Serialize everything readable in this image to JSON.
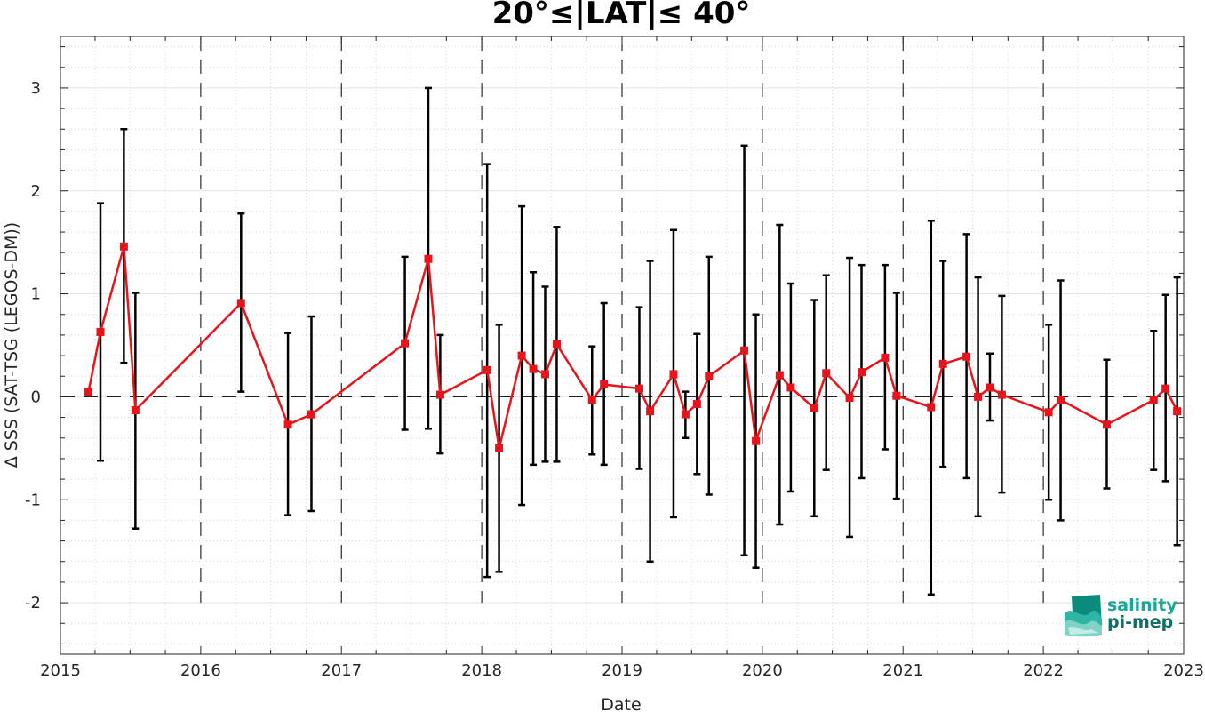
{
  "chart_data": {
    "type": "line",
    "title": "20°≤|LAT|≤ 40°",
    "xlabel": "Date",
    "ylabel": "Δ SSS (SAT-TSG (LEGOS-DM))",
    "xlim": [
      "2015-01-01",
      "2023-01-01"
    ],
    "ylim": [
      -2.5,
      3.5
    ],
    "x_tick_labels": [
      "2015",
      "2016",
      "2017",
      "2018",
      "2019",
      "2020",
      "2021",
      "2022",
      "2023"
    ],
    "y_tick_labels": [
      "-2",
      "-1",
      "0",
      "1",
      "2",
      "3"
    ],
    "y_ticks": [
      -2,
      -1,
      0,
      1,
      2,
      3
    ],
    "grid": true,
    "minor_grid": true,
    "year_dashed_lines": true,
    "zero_dashed_line": true,
    "series": [
      {
        "color": "#e8141b",
        "marker": "square",
        "errorbar_color": "#000000",
        "points": [
          {
            "x": "2015-03-15",
            "y": 0.05,
            "low": 0.03,
            "high": 0.07
          },
          {
            "x": "2015-04-15",
            "y": 0.63,
            "low": -0.62,
            "high": 1.88
          },
          {
            "x": "2015-06-15",
            "y": 1.46,
            "low": 0.33,
            "high": 2.6
          },
          {
            "x": "2015-07-15",
            "y": -0.13,
            "low": -1.28,
            "high": 1.01
          },
          {
            "x": "2016-04-15",
            "y": 0.91,
            "low": 0.05,
            "high": 1.78
          },
          {
            "x": "2016-08-15",
            "y": -0.27,
            "low": -1.15,
            "high": 0.62
          },
          {
            "x": "2016-10-15",
            "y": -0.17,
            "low": -1.11,
            "high": 0.78
          },
          {
            "x": "2017-06-15",
            "y": 0.52,
            "low": -0.32,
            "high": 1.36
          },
          {
            "x": "2017-08-15",
            "y": 1.34,
            "low": -0.31,
            "high": 3.0
          },
          {
            "x": "2017-09-15",
            "y": 0.02,
            "low": -0.55,
            "high": 0.6
          },
          {
            "x": "2018-01-15",
            "y": 0.26,
            "low": -1.75,
            "high": 2.26
          },
          {
            "x": "2018-02-15",
            "y": -0.5,
            "low": -1.7,
            "high": 0.7
          },
          {
            "x": "2018-04-15",
            "y": 0.4,
            "low": -1.05,
            "high": 1.85
          },
          {
            "x": "2018-05-15",
            "y": 0.27,
            "low": -0.66,
            "high": 1.21
          },
          {
            "x": "2018-06-15",
            "y": 0.22,
            "low": -0.63,
            "high": 1.07
          },
          {
            "x": "2018-07-15",
            "y": 0.51,
            "low": -0.63,
            "high": 1.65
          },
          {
            "x": "2018-10-15",
            "y": -0.03,
            "low": -0.56,
            "high": 0.49
          },
          {
            "x": "2018-11-15",
            "y": 0.12,
            "low": -0.66,
            "high": 0.91
          },
          {
            "x": "2019-02-15",
            "y": 0.08,
            "low": -0.7,
            "high": 0.87
          },
          {
            "x": "2019-03-15",
            "y": -0.14,
            "low": -1.6,
            "high": 1.32
          },
          {
            "x": "2019-05-15",
            "y": 0.22,
            "low": -1.17,
            "high": 1.62
          },
          {
            "x": "2019-06-15",
            "y": -0.17,
            "low": -0.4,
            "high": 0.05
          },
          {
            "x": "2019-07-15",
            "y": -0.07,
            "low": -0.75,
            "high": 0.61
          },
          {
            "x": "2019-08-15",
            "y": 0.2,
            "low": -0.95,
            "high": 1.36
          },
          {
            "x": "2019-11-15",
            "y": 0.45,
            "low": -1.54,
            "high": 2.44
          },
          {
            "x": "2019-12-15",
            "y": -0.43,
            "low": -1.66,
            "high": 0.8
          },
          {
            "x": "2020-02-15",
            "y": 0.21,
            "low": -1.24,
            "high": 1.67
          },
          {
            "x": "2020-03-15",
            "y": 0.09,
            "low": -0.92,
            "high": 1.1
          },
          {
            "x": "2020-05-15",
            "y": -0.11,
            "low": -1.16,
            "high": 0.94
          },
          {
            "x": "2020-06-15",
            "y": 0.23,
            "low": -0.71,
            "high": 1.18
          },
          {
            "x": "2020-08-15",
            "y": -0.01,
            "low": -1.36,
            "high": 1.35
          },
          {
            "x": "2020-09-15",
            "y": 0.24,
            "low": -0.79,
            "high": 1.28
          },
          {
            "x": "2020-11-15",
            "y": 0.38,
            "low": -0.51,
            "high": 1.28
          },
          {
            "x": "2020-12-15",
            "y": 0.01,
            "low": -0.99,
            "high": 1.01
          },
          {
            "x": "2021-03-15",
            "y": -0.1,
            "low": -1.92,
            "high": 1.71
          },
          {
            "x": "2021-04-15",
            "y": 0.32,
            "low": -0.68,
            "high": 1.32
          },
          {
            "x": "2021-06-15",
            "y": 0.39,
            "low": -0.79,
            "high": 1.58
          },
          {
            "x": "2021-07-15",
            "y": 0.0,
            "low": -1.16,
            "high": 1.16
          },
          {
            "x": "2021-08-15",
            "y": 0.09,
            "low": -0.23,
            "high": 0.42
          },
          {
            "x": "2021-09-15",
            "y": 0.02,
            "low": -0.93,
            "high": 0.98
          },
          {
            "x": "2022-01-15",
            "y": -0.15,
            "low": -1.0,
            "high": 0.7
          },
          {
            "x": "2022-02-15",
            "y": -0.03,
            "low": -1.2,
            "high": 1.13
          },
          {
            "x": "2022-06-15",
            "y": -0.27,
            "low": -0.89,
            "high": 0.36
          },
          {
            "x": "2022-10-15",
            "y": -0.03,
            "low": -0.71,
            "high": 0.64
          },
          {
            "x": "2022-11-15",
            "y": 0.08,
            "low": -0.82,
            "high": 0.99
          },
          {
            "x": "2022-12-15",
            "y": -0.14,
            "low": -1.44,
            "high": 1.16
          }
        ]
      }
    ]
  },
  "logo": {
    "line1": "salinity",
    "line2": "pi-mep",
    "color1": "#1aa79a",
    "color2": "#0f6f63"
  }
}
